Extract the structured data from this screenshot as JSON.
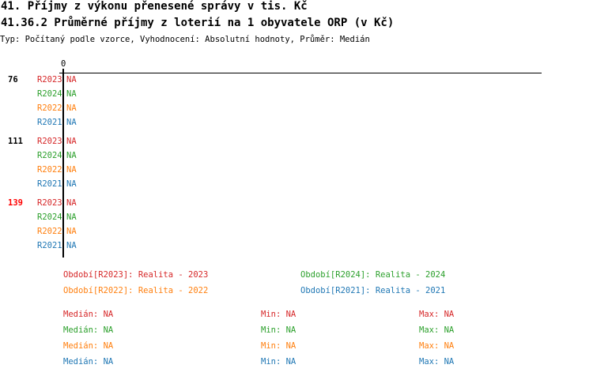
{
  "header": {
    "title": "41. Příjmy z výkonu přenesené správy v tis. Kč",
    "subtitle": "41.36.2 Průměrné příjmy z loterií na 1 obyvatele ORP (v Kč)",
    "info": "Typ: Počítaný podle vzorce, Vyhodnocení: Absolutní hodnoty, Průměr: Medián"
  },
  "colors": {
    "R2023": "#d62728",
    "R2024": "#2ca02c",
    "R2022": "#ff7f0e",
    "R2021": "#1f77b4",
    "highlight": "#ff0000"
  },
  "chart_data": {
    "type": "bar",
    "orientation": "horizontal",
    "x_tick_labels": [
      "0"
    ],
    "groups": [
      {
        "label": "76",
        "highlight": false,
        "rows": [
          {
            "series": "R2023",
            "value": "NA"
          },
          {
            "series": "R2024",
            "value": "NA"
          },
          {
            "series": "R2022",
            "value": "NA"
          },
          {
            "series": "R2021",
            "value": "NA"
          }
        ]
      },
      {
        "label": "111",
        "highlight": false,
        "rows": [
          {
            "series": "R2023",
            "value": "NA"
          },
          {
            "series": "R2024",
            "value": "NA"
          },
          {
            "series": "R2022",
            "value": "NA"
          },
          {
            "series": "R2021",
            "value": "NA"
          }
        ]
      },
      {
        "label": "139",
        "highlight": true,
        "rows": [
          {
            "series": "R2023",
            "value": "NA"
          },
          {
            "series": "R2024",
            "value": "NA"
          },
          {
            "series": "R2022",
            "value": "NA"
          },
          {
            "series": "R2021",
            "value": "NA"
          }
        ]
      }
    ],
    "legend": [
      {
        "series": "R2023",
        "text": "Období[R2023]: Realita - 2023"
      },
      {
        "series": "R2024",
        "text": "Období[R2024]: Realita - 2024"
      },
      {
        "series": "R2022",
        "text": "Období[R2022]: Realita - 2022"
      },
      {
        "series": "R2021",
        "text": "Období[R2021]: Realita - 2021"
      }
    ],
    "stats": [
      {
        "series": "R2023",
        "median": "Medián: NA",
        "min": "Min: NA",
        "max": "Max: NA"
      },
      {
        "series": "R2024",
        "median": "Medián: NA",
        "min": "Min: NA",
        "max": "Max: NA"
      },
      {
        "series": "R2022",
        "median": "Medián: NA",
        "min": "Min: NA",
        "max": "Max: NA"
      },
      {
        "series": "R2021",
        "median": "Medián: NA",
        "min": "Min: NA",
        "max": "Max: NA"
      }
    ]
  }
}
